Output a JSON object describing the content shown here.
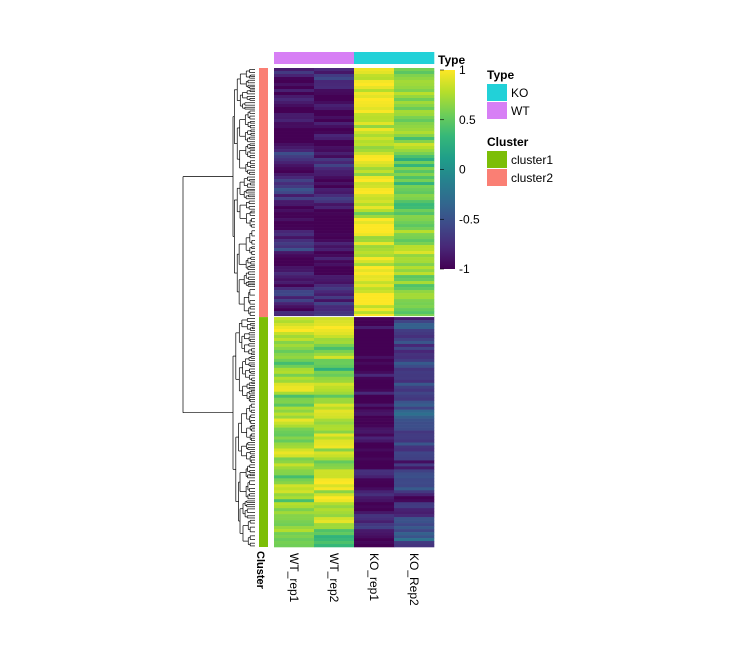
{
  "chart_data": {
    "type": "heatmap",
    "columns": [
      "WT_rep1",
      "WT_rep2",
      "KO_rep1",
      "KO_Rep2"
    ],
    "column_types": [
      "WT",
      "WT",
      "KO",
      "KO"
    ],
    "row_annotation_label": "Cluster",
    "top_annotation_label": "Type",
    "row_clusters": [
      {
        "name": "cluster2",
        "row_fraction": 0.52,
        "typical_values": {
          "WT_rep1": -0.85,
          "WT_rep2": -0.95,
          "KO_rep1": 0.85,
          "KO_Rep2": 0.6
        }
      },
      {
        "name": "cluster1",
        "row_fraction": 0.48,
        "typical_values": {
          "WT_rep1": 0.7,
          "WT_rep2": 0.75,
          "KO_rep1": -0.95,
          "KO_Rep2": -0.6
        }
      }
    ],
    "color_scale": {
      "min": -1,
      "max": 1,
      "ticks": [
        "1",
        "0.5",
        "0",
        "-0.5",
        "-1"
      ],
      "tick_values": [
        1,
        0.5,
        0,
        -0.5,
        -1
      ],
      "colormap": "viridis"
    },
    "legend": {
      "type": {
        "title": "Type",
        "items": [
          {
            "label": "KO",
            "color": "#22d1d8"
          },
          {
            "label": "WT",
            "color": "#d77ff5"
          }
        ]
      },
      "cluster": {
        "title": "Cluster",
        "items": [
          {
            "label": "cluster1",
            "color": "#7cbe07"
          },
          {
            "label": "cluster2",
            "color": "#fa7f74"
          }
        ]
      }
    },
    "dendrogram": "rows"
  }
}
